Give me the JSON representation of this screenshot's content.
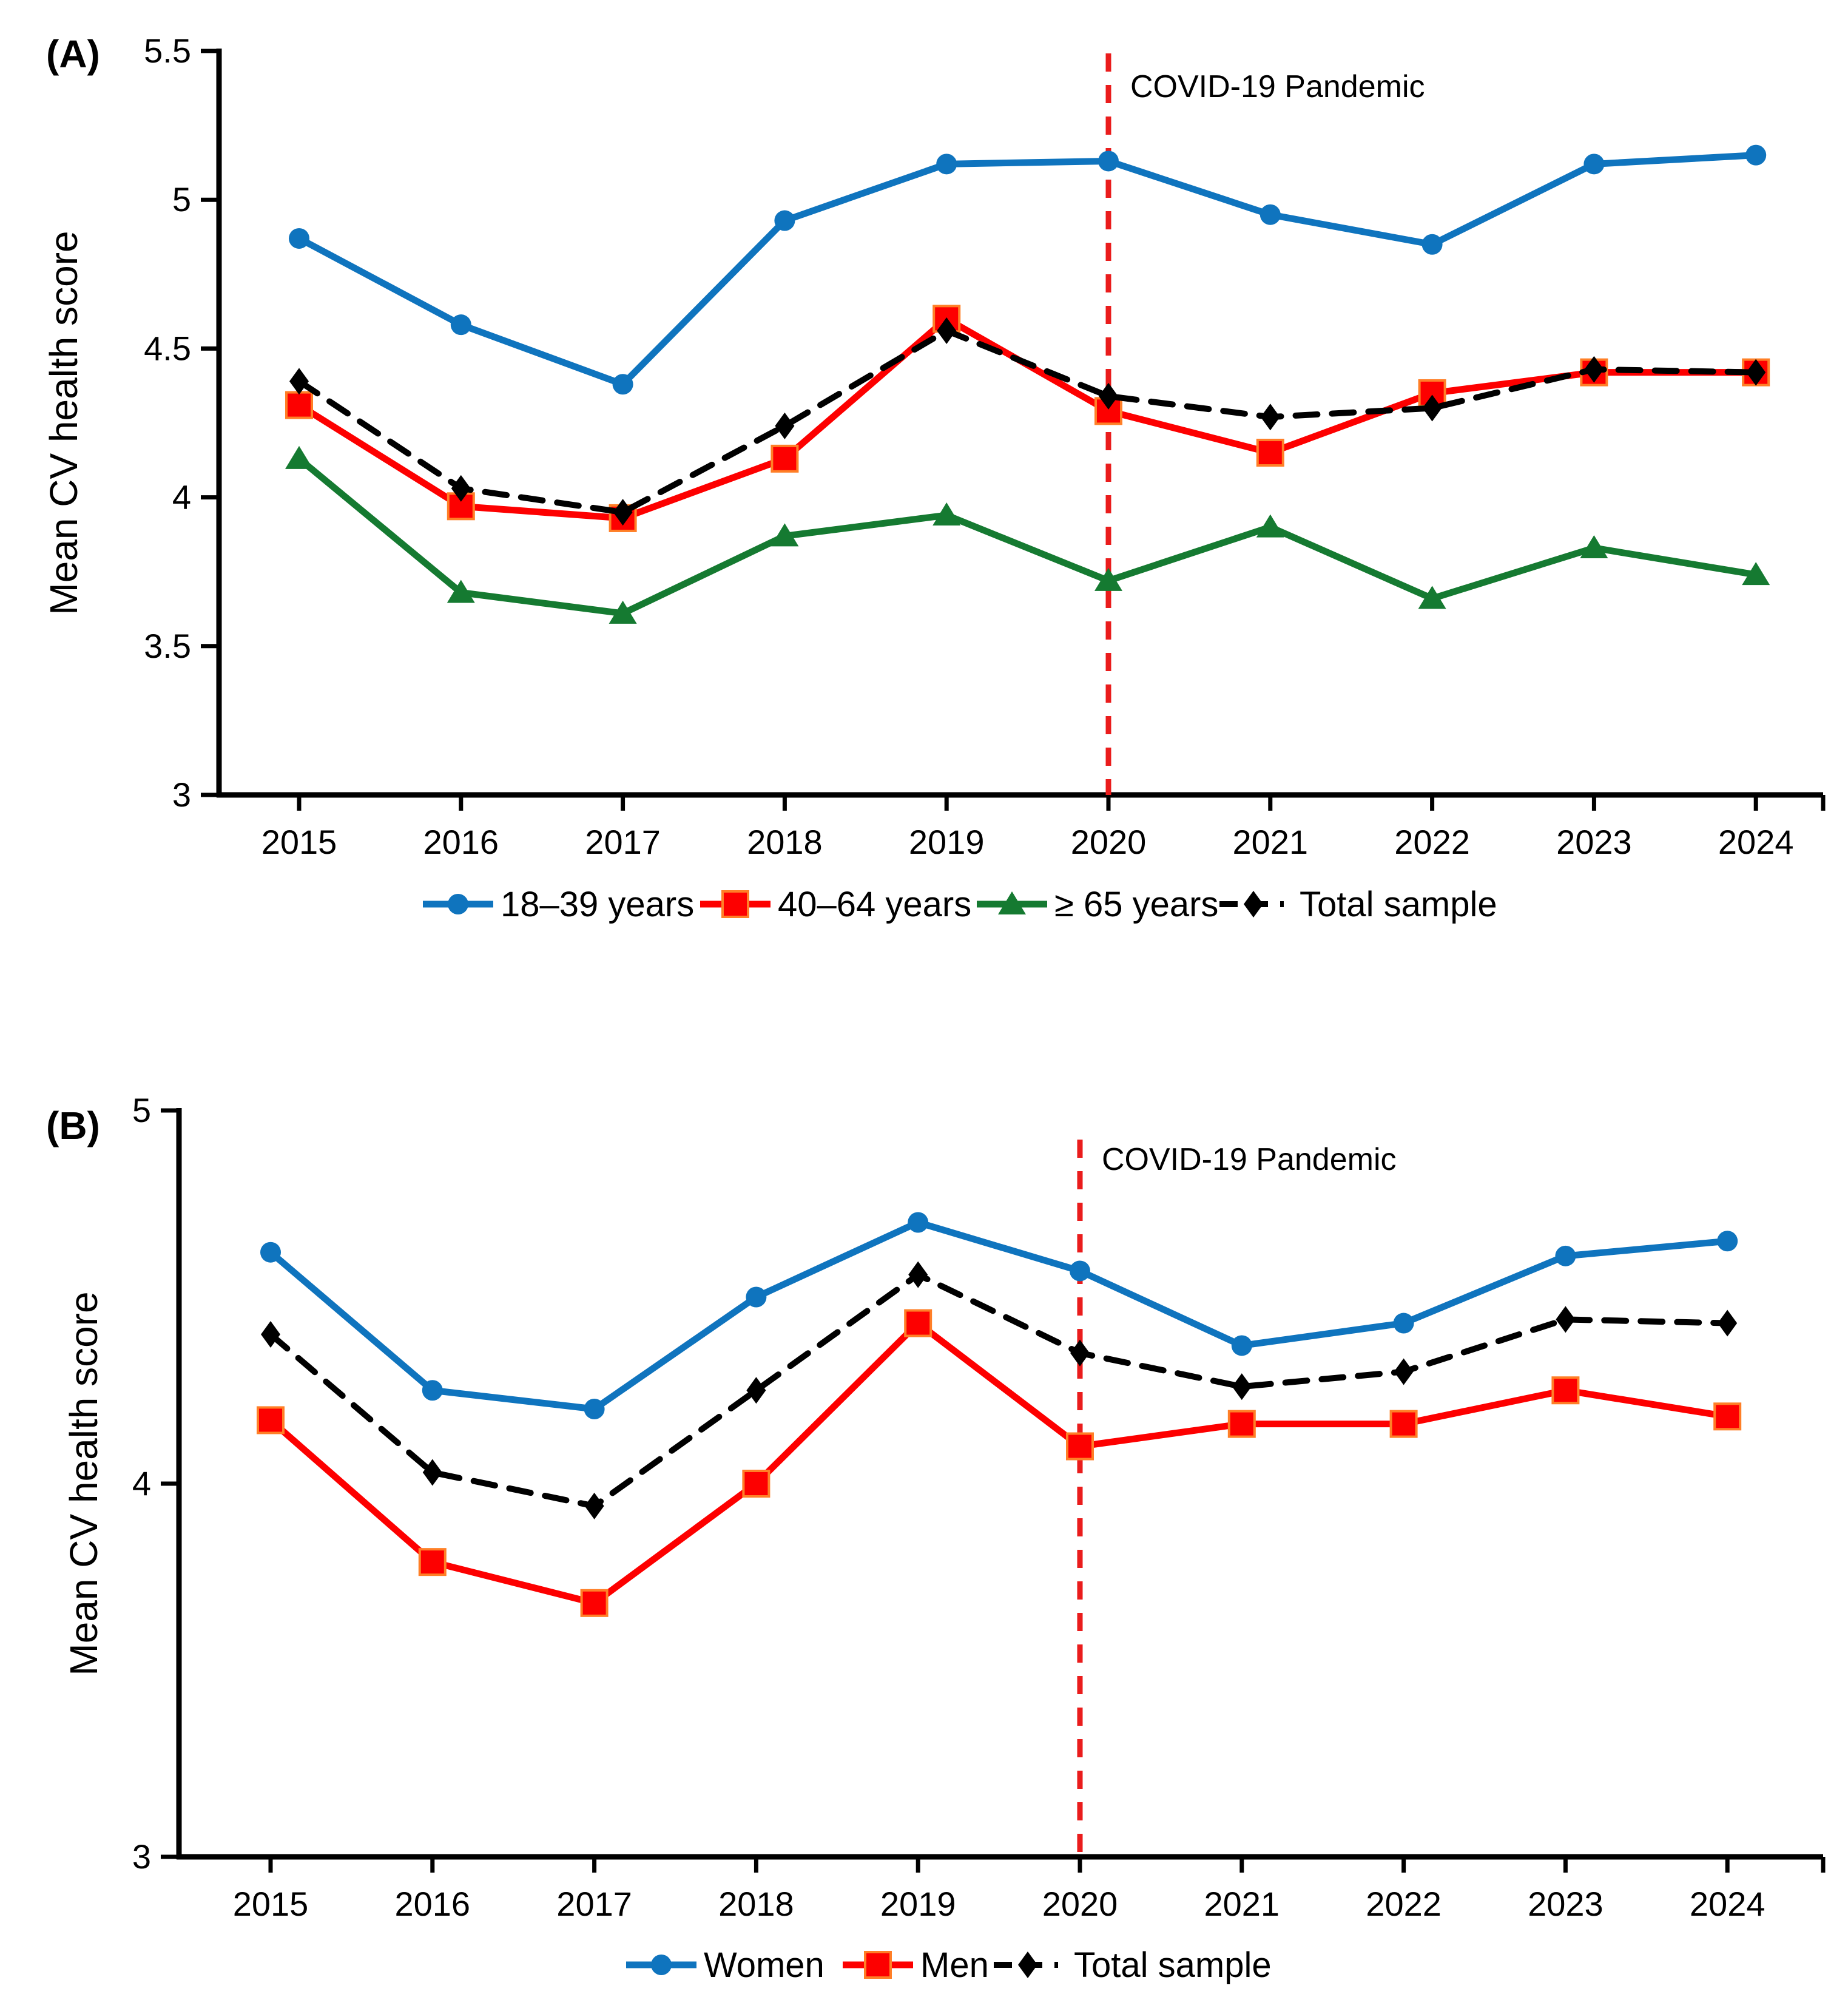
{
  "figure": {
    "background": "#ffffff",
    "panel_a_label": "(A)",
    "panel_b_label": "(B)",
    "y_axis_title": "Mean CV health score",
    "pandemic_annotation": "COVID-19 Pandemic",
    "annotation_line_color": "#ea1c1c",
    "axis_color": "#000000"
  },
  "chart_data": [
    {
      "type": "line",
      "panel": "A",
      "title": "",
      "xlabel": "",
      "ylabel": "Mean CV health score",
      "x": [
        2015,
        2016,
        2017,
        2018,
        2019,
        2020,
        2021,
        2022,
        2023,
        2024
      ],
      "ylim": [
        3,
        5.5
      ],
      "yticks": [
        3,
        3.5,
        4,
        4.5,
        5,
        5.5
      ],
      "grid": false,
      "legend_position": "bottom",
      "annotation": {
        "type": "vline",
        "x": 2020,
        "label": "COVID-19 Pandemic",
        "color": "#ea1c1c",
        "style": "dashed"
      },
      "series": [
        {
          "name": "18–39 years",
          "color": "#0f74be",
          "marker": "circle",
          "line": "solid",
          "values": [
            4.87,
            4.58,
            4.38,
            4.93,
            5.12,
            5.13,
            4.95,
            4.85,
            5.12,
            5.15
          ]
        },
        {
          "name": "40–64 years",
          "color": "#fd0000",
          "marker": "square",
          "marker_stroke": "#ff7f27",
          "line": "solid",
          "values": [
            4.31,
            3.97,
            3.93,
            4.13,
            4.6,
            4.29,
            4.15,
            4.35,
            4.42,
            4.42
          ]
        },
        {
          "name": "≥ 65 years",
          "color": "#157a31",
          "marker": "triangle",
          "line": "solid",
          "values": [
            4.13,
            3.68,
            3.61,
            3.87,
            3.94,
            3.72,
            3.9,
            3.66,
            3.83,
            3.74
          ]
        },
        {
          "name": "Total sample",
          "color": "#000000",
          "marker": "diamond",
          "line": "dashed",
          "values": [
            4.39,
            4.03,
            3.95,
            4.24,
            4.56,
            4.34,
            4.27,
            4.3,
            4.43,
            4.42
          ]
        }
      ]
    },
    {
      "type": "line",
      "panel": "B",
      "title": "",
      "xlabel": "",
      "ylabel": "Mean CV health score",
      "x": [
        2015,
        2016,
        2017,
        2018,
        2019,
        2020,
        2021,
        2022,
        2023,
        2024
      ],
      "ylim": [
        3,
        5
      ],
      "yticks": [
        3,
        4,
        5
      ],
      "grid": false,
      "legend_position": "bottom",
      "annotation": {
        "type": "vline",
        "x": 2020,
        "label": "COVID-19 Pandemic",
        "color": "#ea1c1c",
        "style": "dashed"
      },
      "series": [
        {
          "name": "Women",
          "color": "#0f74be",
          "marker": "circle",
          "line": "solid",
          "values": [
            4.62,
            4.25,
            4.2,
            4.5,
            4.7,
            4.57,
            4.37,
            4.43,
            4.61,
            4.65
          ]
        },
        {
          "name": "Men",
          "color": "#fd0000",
          "marker": "square",
          "marker_stroke": "#ff7f27",
          "line": "solid",
          "values": [
            4.17,
            3.79,
            3.68,
            4.0,
            4.43,
            4.1,
            4.16,
            4.16,
            4.25,
            4.18
          ]
        },
        {
          "name": "Total sample",
          "color": "#000000",
          "marker": "diamond",
          "line": "dashed",
          "values": [
            4.4,
            4.03,
            3.94,
            4.25,
            4.56,
            4.35,
            4.26,
            4.3,
            4.44,
            4.43
          ]
        }
      ]
    }
  ]
}
